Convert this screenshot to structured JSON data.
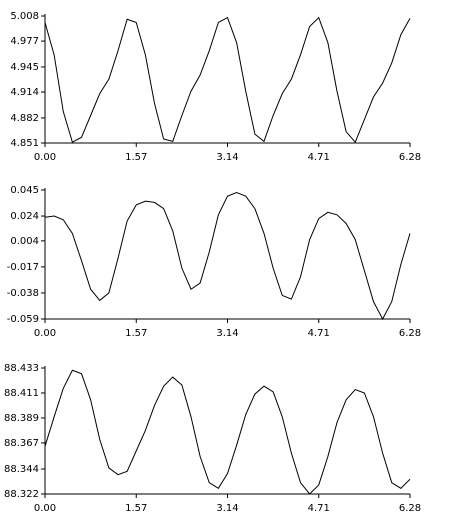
{
  "chart_data": [
    {
      "type": "line",
      "color": "#000000",
      "x": [
        0,
        0.157,
        0.314,
        0.471,
        0.628,
        0.785,
        0.942,
        1.099,
        1.256,
        1.413,
        1.57,
        1.727,
        1.884,
        2.041,
        2.198,
        2.355,
        2.512,
        2.669,
        2.826,
        2.983,
        3.14,
        3.297,
        3.454,
        3.611,
        3.768,
        3.925,
        4.082,
        4.239,
        4.396,
        4.553,
        4.71,
        4.867,
        5.024,
        5.181,
        5.338,
        5.495,
        5.652,
        5.809,
        5.966,
        6.123,
        6.28
      ],
      "values": [
        5.0,
        4.96,
        4.89,
        4.852,
        4.858,
        4.885,
        4.912,
        4.93,
        4.965,
        5.004,
        5.0,
        4.96,
        4.9,
        4.856,
        4.853,
        4.885,
        4.915,
        4.935,
        4.965,
        5.0,
        5.006,
        4.975,
        4.915,
        4.862,
        4.853,
        4.885,
        4.912,
        4.93,
        4.96,
        4.995,
        5.006,
        4.975,
        4.915,
        4.865,
        4.852,
        4.88,
        4.908,
        4.925,
        4.95,
        4.985,
        5.005
      ],
      "xlim": [
        0,
        6.28
      ],
      "xticks": [
        {
          "value": 0,
          "label": "0.00"
        },
        1.57,
        3.14,
        4.71,
        6.28
      ],
      "ylim": [
        4.851,
        5.008
      ],
      "yticks": [
        5.008,
        4.977,
        4.945,
        4.914,
        4.882,
        4.851
      ]
    },
    {
      "type": "line",
      "color": "#000000",
      "x": [
        0,
        0.157,
        0.314,
        0.471,
        0.628,
        0.785,
        0.942,
        1.099,
        1.256,
        1.413,
        1.57,
        1.727,
        1.884,
        2.041,
        2.198,
        2.355,
        2.512,
        2.669,
        2.826,
        2.983,
        3.14,
        3.297,
        3.454,
        3.611,
        3.768,
        3.925,
        4.082,
        4.239,
        4.396,
        4.553,
        4.71,
        4.867,
        5.024,
        5.181,
        5.338,
        5.495,
        5.652,
        5.809,
        5.966,
        6.123,
        6.28
      ],
      "values": [
        0.023,
        0.024,
        0.021,
        0.01,
        -0.012,
        -0.035,
        -0.044,
        -0.038,
        -0.01,
        0.02,
        0.033,
        0.036,
        0.035,
        0.03,
        0.012,
        -0.018,
        -0.035,
        -0.03,
        -0.005,
        0.025,
        0.04,
        0.043,
        0.04,
        0.03,
        0.01,
        -0.018,
        -0.04,
        -0.043,
        -0.025,
        0.005,
        0.022,
        0.027,
        0.025,
        0.018,
        0.005,
        -0.02,
        -0.045,
        -0.059,
        -0.045,
        -0.015,
        0.01
      ],
      "xlim": [
        0,
        6.28
      ],
      "xticks": [
        {
          "value": 0,
          "label": "0.00"
        },
        1.57,
        3.14,
        4.71,
        6.28
      ],
      "ylim": [
        -0.059,
        0.045
      ],
      "yticks": [
        0.045,
        0.024,
        0.004,
        -0.017,
        -0.038,
        -0.059
      ]
    },
    {
      "type": "line",
      "color": "#000000",
      "x": [
        0,
        0.157,
        0.314,
        0.471,
        0.628,
        0.785,
        0.942,
        1.099,
        1.256,
        1.413,
        1.57,
        1.727,
        1.884,
        2.041,
        2.198,
        2.355,
        2.512,
        2.669,
        2.826,
        2.983,
        3.14,
        3.297,
        3.454,
        3.611,
        3.768,
        3.925,
        4.082,
        4.239,
        4.396,
        4.553,
        4.71,
        4.867,
        5.024,
        5.181,
        5.338,
        5.495,
        5.652,
        5.809,
        5.966,
        6.123,
        6.28
      ],
      "values": [
        88.364,
        88.39,
        88.415,
        88.431,
        88.428,
        88.405,
        88.37,
        88.345,
        88.339,
        88.342,
        88.36,
        88.378,
        88.4,
        88.417,
        88.425,
        88.418,
        88.39,
        88.355,
        88.332,
        88.327,
        88.34,
        88.365,
        88.392,
        88.41,
        88.417,
        88.412,
        88.39,
        88.358,
        88.332,
        88.322,
        88.33,
        88.355,
        88.385,
        88.405,
        88.414,
        88.411,
        88.39,
        88.358,
        88.332,
        88.327,
        88.335
      ],
      "xlim": [
        0,
        6.28
      ],
      "xticks": [
        {
          "value": 0,
          "label": "0.00"
        },
        1.57,
        3.14,
        4.71,
        6.28
      ],
      "ylim": [
        88.322,
        88.433
      ],
      "yticks": [
        88.433,
        88.411,
        88.389,
        88.367,
        88.344,
        88.322
      ]
    }
  ]
}
